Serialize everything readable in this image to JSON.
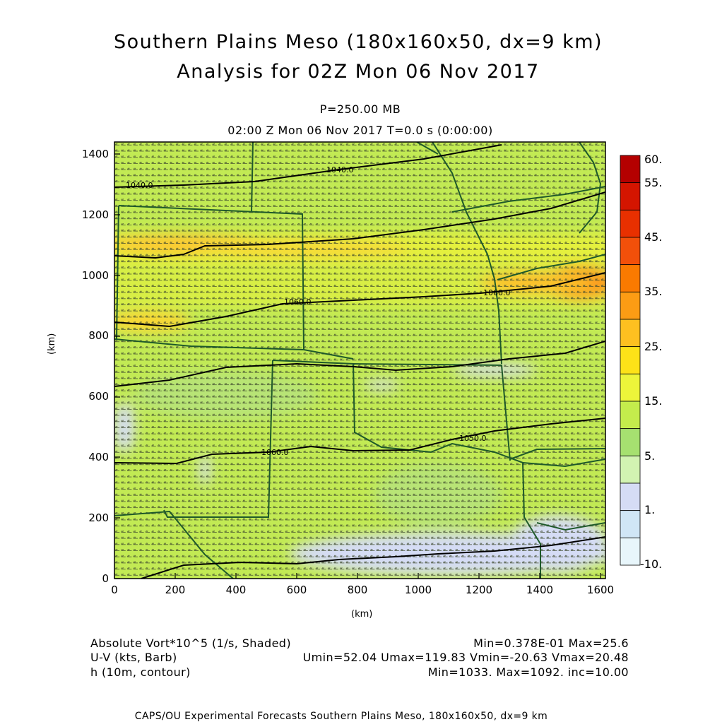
{
  "header": {
    "title_line1": "Southern Plains Meso (180x160x50, dx=9 km)",
    "title_line2": "Analysis for 02Z Mon 06 Nov 2017",
    "level": "P=250.00 MB",
    "time_line": "02:00 Z Mon 06 Nov 2017    T=0.0 s (0:00:00)"
  },
  "axes": {
    "xlabel": "(km)",
    "ylabel": "(km)",
    "xticks": [
      "0",
      "200",
      "400",
      "600",
      "800",
      "1000",
      "1200",
      "1400",
      "1600"
    ],
    "yticks": [
      "0",
      "200",
      "400",
      "600",
      "800",
      "1000",
      "1200",
      "1400"
    ],
    "xrange": [
      0,
      1620
    ],
    "yrange": [
      0,
      1440
    ]
  },
  "colorbar": {
    "labels": [
      "60.",
      "55.",
      "45.",
      "35.",
      "25.",
      "15.",
      "5.",
      "1.",
      "-10."
    ],
    "colors_top_to_bottom": [
      "#b40000",
      "#d41500",
      "#e83000",
      "#f2500a",
      "#fa7a00",
      "#fc9c14",
      "#fec020",
      "#fde218",
      "#edf53a",
      "#c4ec4c",
      "#a6e070",
      "#d2f3b2",
      "#d5dcf5",
      "#d0e6f6",
      "#e8f6fb"
    ]
  },
  "contour_labels": [
    "1040.0",
    "1040.0",
    "1060.0",
    "1060.0",
    "1060.0",
    "1050.0"
  ],
  "legend": {
    "row1_left": "Absolute Vort*10^5 (1/s, Shaded)",
    "row1_right": "Min=0.378E-01 Max=25.6",
    "row2_left": "U-V (kts, Barb)",
    "row2_right": "Umin=52.04 Umax=119.83 Vmin=-20.63 Vmax=20.48",
    "row3_left": "h (10m, contour)",
    "row3_right": "Min=1033. Max=1092. inc=10.00"
  },
  "footer": "CAPS/OU Experimental Forecasts  Southern Plains Meso, 180x160x50, dx=9 km"
}
